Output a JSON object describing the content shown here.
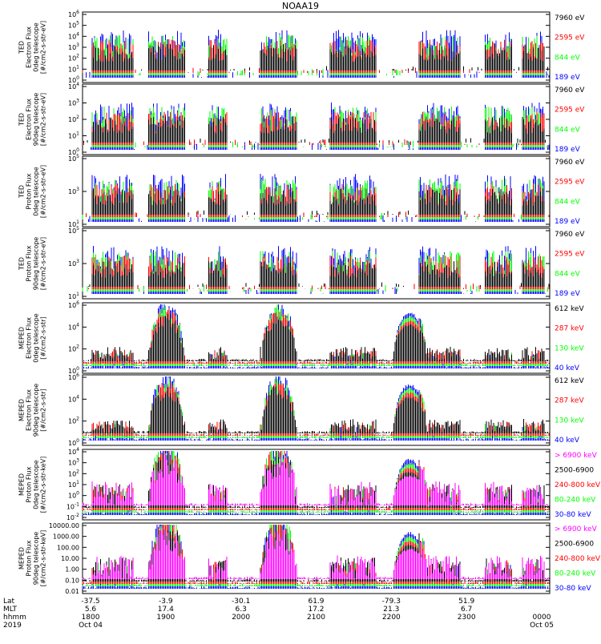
{
  "title": "NOAA19",
  "colors": {
    "black": "#000000",
    "red": "#ff0000",
    "green": "#00ff00",
    "blue": "#0000ff",
    "magenta": "#ff00ff"
  },
  "chart_data": [
    {
      "type": "line",
      "instrument": "TED",
      "ylabel_lines": [
        "TED",
        "Electron Flux",
        "0deg telescope",
        "[#/cm2-s-str-eV]"
      ],
      "y_ticks": [
        "10^6",
        "10^5",
        "10^4",
        "10^3",
        "10^2",
        "10^1",
        "10^0"
      ],
      "log_range": [
        0,
        6
      ],
      "legend": [
        {
          "label": "7960 eV",
          "color": "#000000"
        },
        {
          "label": "2595 eV",
          "color": "#ff0000"
        },
        {
          "label": "844 eV",
          "color": "#00ff00"
        },
        {
          "label": "189 eV",
          "color": "#0000ff"
        }
      ]
    },
    {
      "type": "line",
      "instrument": "TED",
      "ylabel_lines": [
        "TED",
        "Electron Flux",
        "90deg telescope",
        "[#/cm2-s-str-eV]"
      ],
      "y_ticks": [
        "10^4",
        "10^3",
        "10^2",
        "10^1",
        "10^0"
      ],
      "log_range": [
        0,
        4.4
      ],
      "legend": [
        {
          "label": "7960 eV",
          "color": "#000000"
        },
        {
          "label": "2595 eV",
          "color": "#ff0000"
        },
        {
          "label": "844 eV",
          "color": "#00ff00"
        },
        {
          "label": "189 eV",
          "color": "#0000ff"
        }
      ]
    },
    {
      "type": "line",
      "instrument": "TED",
      "ylabel_lines": [
        "TED",
        "Proton Flux",
        "0deg telescope",
        "[#/cm2-s-str-eV]"
      ],
      "y_ticks": [
        "10^5",
        "10^3",
        "10^1"
      ],
      "log_range": [
        0,
        5.4
      ],
      "legend": [
        {
          "label": "7960 eV",
          "color": "#000000"
        },
        {
          "label": "2595 eV",
          "color": "#ff0000"
        },
        {
          "label": "844 eV",
          "color": "#00ff00"
        },
        {
          "label": "189 eV",
          "color": "#0000ff"
        }
      ]
    },
    {
      "type": "line",
      "instrument": "TED",
      "ylabel_lines": [
        "TED",
        "Proton Flux",
        "90deg telescope",
        "[#/cm2-s-str-eV]"
      ],
      "y_ticks": [
        "10^5",
        "10^3",
        "10^1"
      ],
      "log_range": [
        0,
        5.4
      ],
      "legend": [
        {
          "label": "7960 eV",
          "color": "#000000"
        },
        {
          "label": "2595 eV",
          "color": "#ff0000"
        },
        {
          "label": "844 eV",
          "color": "#00ff00"
        },
        {
          "label": "189 eV",
          "color": "#0000ff"
        }
      ]
    },
    {
      "type": "line",
      "instrument": "MEPED",
      "ylabel_lines": [
        "MEPED",
        "Electron Flux",
        "0deg telescope",
        "[#/cm2-s-str]"
      ],
      "y_ticks": [
        "10^6",
        "10^4",
        "10^2",
        "10^0"
      ],
      "log_range": [
        -0.3,
        6.3
      ],
      "legend": [
        {
          "label": "612 keV",
          "color": "#000000"
        },
        {
          "label": "287 keV",
          "color": "#ff0000"
        },
        {
          "label": "130 keV",
          "color": "#00ff00"
        },
        {
          "label": "40 keV",
          "color": "#0000ff"
        }
      ]
    },
    {
      "type": "line",
      "instrument": "MEPED",
      "ylabel_lines": [
        "MEPED",
        "Electron Flux",
        "90deg telescope",
        "[#/cm2-s-str]"
      ],
      "y_ticks": [
        "10^6",
        "10^4",
        "10^2",
        "10^0"
      ],
      "log_range": [
        -0.3,
        6.3
      ],
      "legend": [
        {
          "label": "612 keV",
          "color": "#000000"
        },
        {
          "label": "287 keV",
          "color": "#ff0000"
        },
        {
          "label": "130 keV",
          "color": "#00ff00"
        },
        {
          "label": "40 keV",
          "color": "#0000ff"
        }
      ]
    },
    {
      "type": "line",
      "instrument": "MEPED",
      "ylabel_lines": [
        "MEPED",
        "Proton Flux",
        "0deg telescope",
        "[#/cm2-s-str-keV]"
      ],
      "y_ticks": [
        "10^4",
        "10^3",
        "10^2",
        "10^1",
        "10^0",
        "10^-1",
        "10^-2"
      ],
      "log_range": [
        -2,
        4
      ],
      "legend": [
        {
          "label": "> 6900 keV",
          "color": "#ff00ff"
        },
        {
          "label": "2500-6900",
          "color": "#000000"
        },
        {
          "label": "240-800 keV",
          "color": "#ff0000"
        },
        {
          "label": "80-240 keV",
          "color": "#00ff00"
        },
        {
          "label": "30-80 keV",
          "color": "#0000ff"
        }
      ]
    },
    {
      "type": "line",
      "instrument": "MEPED",
      "ylabel_lines": [
        "MEPED",
        "Proton Flux",
        "90deg telescope",
        "[#/cm2-s-str-keV]"
      ],
      "y_ticks": [
        "10000.00",
        "1000.00",
        "100.00",
        "10.00",
        "1.00",
        "0.10",
        "0.01"
      ],
      "log_range": [
        -2,
        4
      ],
      "legend": [
        {
          "label": "> 6900 keV",
          "color": "#ff00ff"
        },
        {
          "label": "2500-6900",
          "color": "#000000"
        },
        {
          "label": "240-800 keV",
          "color": "#ff0000"
        },
        {
          "label": "80-240 keV",
          "color": "#00ff00"
        },
        {
          "label": "30-80 keV",
          "color": "#0000ff"
        }
      ]
    }
  ],
  "x_axis": {
    "row_labels": [
      "Lat",
      "MLT",
      "hhmm",
      "2019"
    ],
    "columns": [
      {
        "Lat": "-37.5",
        "MLT": "5.6",
        "hhmm": "1800",
        "date": "Oct 04"
      },
      {
        "Lat": "-3.9",
        "MLT": "17.4",
        "hhmm": "1900",
        "date": ""
      },
      {
        "Lat": "-30.1",
        "MLT": "6.3",
        "hhmm": "2000",
        "date": ""
      },
      {
        "Lat": "61.9",
        "MLT": "17.2",
        "hhmm": "2100",
        "date": ""
      },
      {
        "Lat": "-79.3",
        "MLT": "21.3",
        "hhmm": "2200",
        "date": ""
      },
      {
        "Lat": "51.9",
        "MLT": "6.7",
        "hhmm": "2300",
        "date": ""
      },
      {
        "Lat": "",
        "MLT": "",
        "hhmm": "0000",
        "date": "Oct 05"
      }
    ]
  }
}
